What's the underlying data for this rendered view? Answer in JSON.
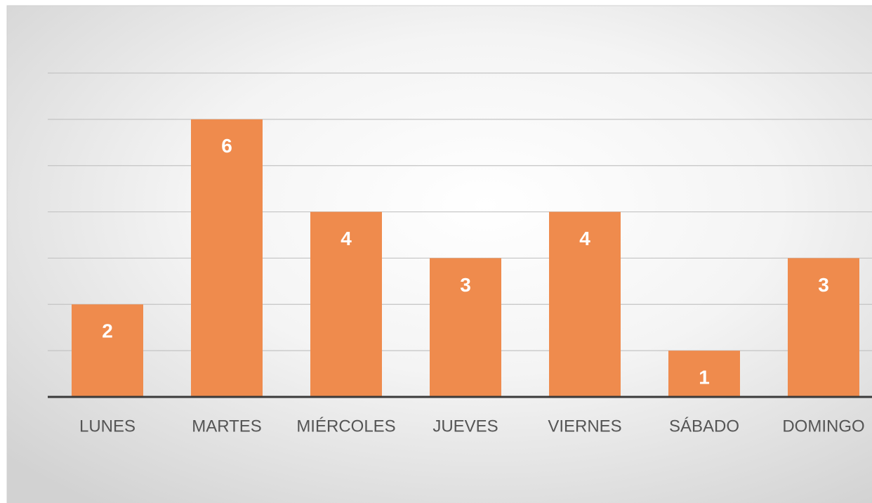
{
  "chart_data": {
    "type": "bar",
    "categories": [
      "LUNES",
      "MARTES",
      "MIÉRCOLES",
      "JUEVES",
      "VIERNES",
      "SÁBADO",
      "DOMINGO"
    ],
    "values": [
      2,
      6,
      4,
      3,
      4,
      1,
      3
    ],
    "color": "#ef8b4d",
    "ylim": [
      0,
      7
    ],
    "yticks": [
      1,
      2,
      3,
      4,
      5,
      6,
      7
    ],
    "grid": true
  }
}
